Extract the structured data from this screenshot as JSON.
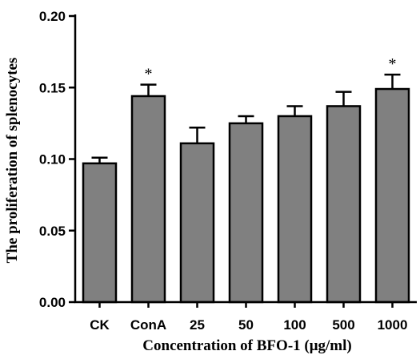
{
  "chart_data": {
    "type": "bar",
    "title": "",
    "xlabel": "Concentration of BFO-1 (μg/ml)",
    "ylabel": "The proliferation of splenocytes",
    "categories": [
      "CK",
      "ConA",
      "25",
      "50",
      "100",
      "500",
      "1000"
    ],
    "values": [
      0.097,
      0.144,
      0.111,
      0.125,
      0.13,
      0.137,
      0.149
    ],
    "errors": [
      0.004,
      0.008,
      0.011,
      0.005,
      0.007,
      0.01,
      0.01
    ],
    "significance": [
      "",
      "*",
      "",
      "",
      "",
      "",
      "*"
    ],
    "ylim": [
      0,
      0.2
    ],
    "yticks": [
      "0.00",
      "0.05",
      "0.10",
      "0.15",
      "0.20"
    ],
    "bar_color": "#808080",
    "grid": false,
    "legend": "none"
  }
}
